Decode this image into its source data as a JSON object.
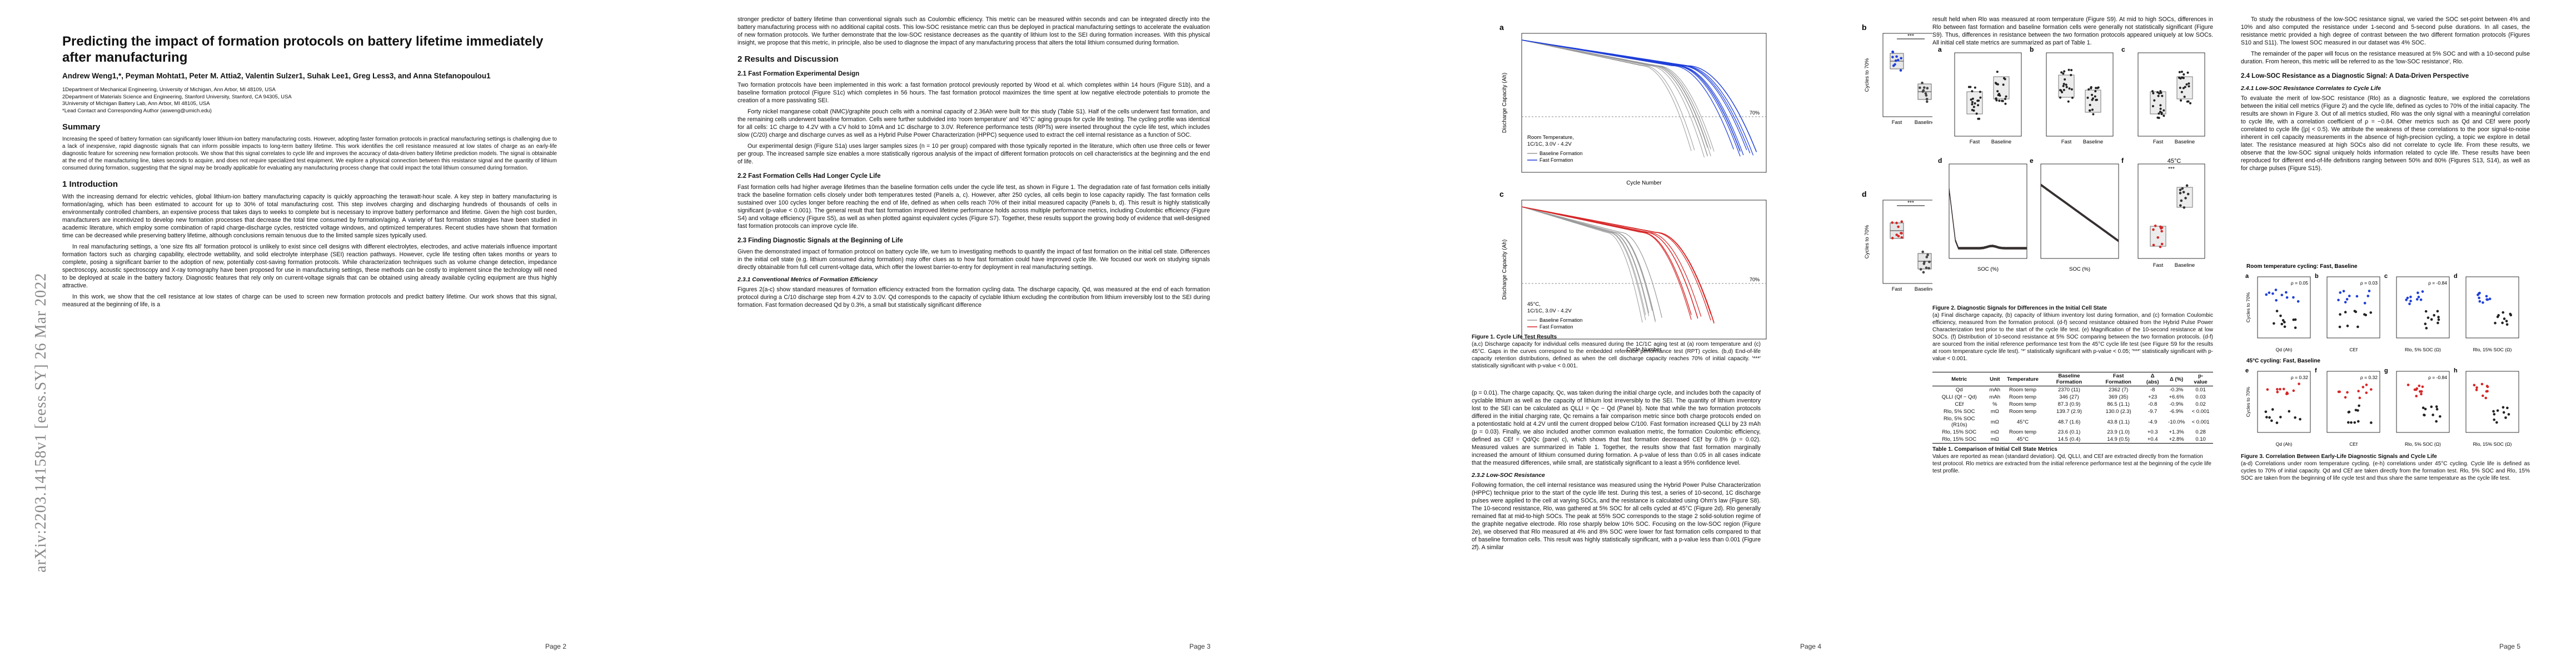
{
  "arxiv_id": "arXiv:2203.14158v1  [eess.SY]  26 Mar 2022",
  "page_numbers": [
    "Page 2",
    "Page 3",
    "Page 4",
    "Page 5"
  ],
  "paper": {
    "title": "Predicting the impact of formation protocols on battery lifetime immediately after manufacturing",
    "authors": "Andrew Weng1,*, Peyman Mohtat1, Peter M. Attia2, Valentin Sulzer1, Suhak Lee1, Greg Less3, and Anna Stefanopoulou1",
    "affiliations": [
      "1Department of Mechanical Engineering, University of Michigan, Ann Arbor, MI 48109, USA",
      "2Department of Materials Science and Engineering, Stanford University, Stanford, CA 94305, USA",
      "3University of Michigan Battery Lab, Ann Arbor, MI 48105, USA",
      "*Lead Contact and Corresponding Author (asweng@umich.edu)"
    ],
    "summary_heading": "Summary",
    "summary": "Increasing the speed of battery formation can significantly lower lithium-ion battery manufacturing costs. However, adopting faster formation protocols in practical manufacturing settings is challenging due to a lack of inexpensive, rapid diagnostic signals that can inform possible impacts to long-term battery lifetime. This work identifies the cell resistance measured at low states of charge as an early-life diagnostic feature for screening new formation protocols. We show that this signal correlates to cycle life and improves the accuracy of data-driven battery lifetime prediction models. The signal is obtainable at the end of the manufacturing line, takes seconds to acquire, and does not require specialized test equipment. We explore a physical connection between this resistance signal and the quantity of lithium consumed during formation, suggesting that the signal may be broadly applicable for evaluating any manufacturing process change that could impact the total lithium consumed during formation.",
    "intro_heading": "1  Introduction",
    "intro_p1": "With the increasing demand for electric vehicles, global lithium-ion battery manufacturing capacity is quickly approaching the terawatt-hour scale. A key step in battery manufacturing is formation/aging, which has been estimated to account for up to 30% of total manufacturing cost. This step involves charging and discharging hundreds of thousands of cells in environmentally controlled chambers, an expensive process that takes days to weeks to complete but is necessary to improve battery performance and lifetime. Given the high cost burden, manufacturers are incentivized to develop new formation processes that decrease the total time consumed by formation/aging. A variety of fast formation strategies have been studied in academic literature, which employ some combination of rapid charge-discharge cycles, restricted voltage windows, and optimized temperatures. Recent studies have shown that formation time can be decreased while preserving battery lifetime, although conclusions remain tenuous due to the limited sample sizes typically used.",
    "intro_p2": "In real manufacturing settings, a 'one size fits all' formation protocol is unlikely to exist since cell designs with different electrolytes, electrodes, and active materials influence important formation factors such as charging capability, electrode wettability, and solid electrolyte interphase (SEI) reaction pathways. However, cycle life testing often takes months or years to complete, posing a significant barrier to the adoption of new, potentially cost-saving formation protocols. While characterization techniques such as volume change detection, impedance spectroscopy, acoustic spectroscopy and X-ray tomography have been proposed for use in manufacturing settings, these methods can be costly to implement since the technology will need to be deployed at scale in the battery factory. Diagnostic features that rely only on current-voltage signals that can be obtained using already available cycling equipment are thus highly attractive.",
    "intro_p3": "In this work, we show that the cell resistance at low states of charge can be used to screen new formation protocols and predict battery lifetime. Our work shows that this signal, measured at the beginning of life, is a"
  },
  "page3": {
    "text_p1": "stronger predictor of battery lifetime than conventional signals such as Coulombic efficiency. This metric can be measured within seconds and can be integrated directly into the battery manufacturing process with no additional capital costs. This low-SOC resistance metric can thus be deployed in practical manufacturing settings to accelerate the evaluation of new formation protocols. We further demonstrate that the low-SOC resistance decreases as the quantity of lithium lost to the SEI during formation increases. With this physical insight, we propose that this metric, in principle, also be used to diagnose the impact of any manufacturing process that alters the total lithium consumed during formation.",
    "h_results": "2  Results and Discussion",
    "h_21": "2.1  Fast Formation Experimental Design",
    "p_21a": "Two formation protocols have been implemented in this work: a fast formation protocol previously reported by Wood et al. which completes within 14 hours (Figure S1b), and a baseline formation protocol (Figure S1c) which completes in 56 hours. The fast formation protocol maximizes the time spent at low negative electrode potentials to promote the creation of a more passivating SEI.",
    "p_21b": "Forty nickel manganese cobalt (NMC)/graphite pouch cells with a nominal capacity of 2.36Ah were built for this study (Table S1). Half of the cells underwent fast formation, and the remaining cells underwent baseline formation. Cells were further subdivided into 'room temperature' and '45°C' aging groups for cycle life testing. The cycling profile was identical for all cells: 1C charge to 4.2V with a CV hold to 10mA and 1C discharge to 3.0V. Reference performance tests (RPTs) were inserted throughout the cycle life test, which includes slow (C/20) charge and discharge curves as well as a Hybrid Pulse Power Characterization (HPPC) sequence used to extract the cell internal resistance as a function of SOC.",
    "p_21c": "Our experimental design (Figure S1a) uses larger samples sizes (n = 10 per group) compared with those typically reported in the literature, which often use three cells or fewer per group. The increased sample size enables a more statistically rigorous analysis of the impact of different formation protocols on cell characteristics at the beginning and the end of life.",
    "h_22": "2.2  Fast Formation Cells Had Longer Cycle Life",
    "p_22": "Fast formation cells had higher average lifetimes than the baseline formation cells under the cycle life test, as shown in Figure 1. The degradation rate of fast formation cells initially track the baseline formation cells closely under both temperatures tested (Panels a, c). However, after 250 cycles, all cells begin to lose capacity rapidly. The fast formation cells sustained over 100 cycles longer before reaching the end of life, defined as when cells reach 70% of their initial measured capacity (Panels b, d). This result is highly statistically significant (p-value < 0.001). The general result that fast formation improved lifetime performance holds across multiple performance metrics, including Coulombic efficiency (Figure S4) and voltage efficiency (Figure S5), as well as when plotted against equivalent cycles (Figure S7). Together, these results support the growing body of evidence that well-designed fast formation protocols can improve cycle life.",
    "h_23": "2.3  Finding Diagnostic Signals at the Beginning of Life",
    "p_23": "Given the demonstrated impact of formation protocol on battery cycle life, we turn to investigating methods to quantify the impact of fast formation on the initial cell state. Differences in the initial cell state (e.g. lithium consumed during formation) may offer clues as to how fast formation could have improved cycle life. We focused our work on studying signals directly obtainable from full cell current-voltage data, which offer the lowest barrier-to-entry for deployment in real manufacturing settings.",
    "h_231": "2.3.1  Conventional Metrics of Formation Efficiency",
    "p_231": "Figures 2(a-c) show standard measures of formation efficiency extracted from the formation cycling data. The discharge capacity, Qd, was measured at the end of each formation protocol during a C/10 discharge step from 4.2V to 3.0V. Qd corresponds to the capacity of cyclable lithium excluding the contribution from lithium irreversibly lost to the SEI during formation. Fast formation decreased Qd by 0.3%, a small but statistically significant difference"
  },
  "figure1": {
    "caption_title": "Figure 1. Cycle Life Test Results",
    "caption": "(a,c) Discharge capacity for individual cells measured during the 1C/1C aging test at (a) room temperature and (c) 45°C. Gaps in the curves correspond to the embedded reference performance test (RPT) cycles. (b,d) End-of-life capacity retention distributions, defined as when the cell discharge capacity reaches 70% of initial capacity. '***' statistically significant with p-value < 0.001.",
    "ylabel": "Discharge Capacity (Ah)",
    "xlabel": "Cycle Number",
    "box_ylabel": "Cycles to 70%",
    "line70": "70%",
    "legend_fast": "Fast Formation",
    "legend_base": "Baseline Formation",
    "sig": "***",
    "cond_a": [
      "Room Temperature,",
      "1C/1C, 3.0V - 4.2V"
    ],
    "cond_c": [
      "45°C,",
      "1C/1C, 3.0V - 4.2V"
    ],
    "box_cats": [
      "Fast",
      "Baseline"
    ]
  },
  "page4": {
    "text_p1": "result held when Rlo was measured at room temperature (Figure S9). At mid to high SOCs, differences in Rlo between fast formation and baseline formation cells were generally not statistically significant (Figure S9). Thus, differences in resistance between the two formation protocols appeared uniquely at low SOCs. All initial cell state metrics are summarized as part of Table 1.",
    "fig2_caption_title": "Figure 2. Diagnostic Signals for Differences in the Initial Cell State",
    "fig2_caption": "(a) Final discharge capacity, (b) capacity of lithium inventory lost during formation, and (c) formation Coulombic efficiency, measured from the formation protocol. (d-f) second resistance obtained from the Hybrid Pulse Power Characterization test prior to the start of the cycle life test. (e) Magnification of the 10-second resistance at low SOCs. (f) Distribution of 10-second resistance at 5% SOC comparing between the two formation protocols. (d-f) are sourced from the initial reference performance test from the 45°C cycle life test (see Figure S9 for the results at room temperature cycle life test). '*' statistically significant with p-value < 0.05; '***' statistically significant with p-value < 0.001.",
    "fig2_temp": "45°C",
    "fig2_legend": "Fast | Baseline",
    "fig2_xlabel": "SOC (%)",
    "table1_title": "Table 1. Comparison of Initial Cell State Metrics",
    "table1_caption": "Values are reported as mean (standard deviation). Qd, QLLI, and CEf are extracted directly from the formation test protocol. Rlo metrics are extracted from the initial reference performance test at the beginning of the cycle life test profile.",
    "table1_headers": [
      "Metric",
      "Unit",
      "Temperature",
      "Baseline Formation",
      "Fast Formation",
      "Δ (abs)",
      "Δ (%)",
      "p-value"
    ],
    "table1_rows": [
      [
        "Qd",
        "mAh",
        "Room temp",
        "2370 (11)",
        "2362 (7)",
        "-8",
        "-0.3%",
        "0.01"
      ],
      [
        "QLLI (Qf − Qd)",
        "mAh",
        "Room temp",
        "346 (27)",
        "369 (35)",
        "+23",
        "+6.6%",
        "0.03"
      ],
      [
        "CEf",
        "%",
        "Room temp",
        "87.3 (0.9)",
        "86.5 (1.1)",
        "-0.8",
        "-0.9%",
        "0.02"
      ],
      [
        "Rlo, 5% SOC",
        "mΩ",
        "Room temp",
        "139.7 (2.9)",
        "130.0 (2.3)",
        "-9.7",
        "-6.9%",
        "< 0.001"
      ],
      [
        "Rlo, 5% SOC (R10s)",
        "mΩ",
        "45°C",
        "48.7 (1.6)",
        "43.8 (1.1)",
        "-4.9",
        "-10.0%",
        "< 0.001"
      ],
      [
        "Rlo, 15% SOC",
        "mΩ",
        "Room temp",
        "23.6 (0.1)",
        "23.9 (1.0)",
        "+0.3",
        "+1.3%",
        "0.28"
      ],
      [
        "Rlo, 15% SOC",
        "mΩ",
        "45°C",
        "14.5 (0.4)",
        "14.9 (0.5)",
        "+0.4",
        "+2.8%",
        "0.10"
      ]
    ],
    "h_232": "2.3.2  Low-SOC Resistance",
    "p_232": "Following formation, the cell internal resistance was measured using the Hybrid Power Pulse Characterization (HPPC) technique prior to the start of the cycle life test. During this test, a series of 10-second, 1C discharge pulses were applied to the cell at varying SOCs, and the resistance is calculated using Ohm's law (Figure S8). The 10-second resistance, Rlo, was gathered at 5% SOC for all cells cycled at 45°C (Figure 2d). Rlo generally remained flat at mid-to-high SOCs. The peak at 55% SOC corresponds to the stage 2 solid-solution regime of the graphite negative electrode. Rlo rose sharply below 10% SOC. Focusing on the low-SOC region (Figure 2e), we observed that Rlo measured at 4% and 8% SOC were lower for fast formation cells compared to that of baseline formation cells. This result was highly statistically significant, with a p-value less than 0.001 (Figure 2f). A similar",
    "p_pvalue": "(p = 0.01). The charge capacity, Qc, was taken during the initial charge cycle, and includes both the capacity of cyclable lithium as well as the capacity of lithium lost irreversibly to the SEI. The quantity of lithium inventory lost to the SEI can be calculated as QLLI = Qc − Qd (Panel b). Note that while the two formation protocols differed in the initial charging rate, Qc remains a fair comparison metric since both charge protocols ended on a potentiostatic hold at 4.2V until the current dropped below C/100. Fast formation increased QLLI by 23 mAh (p = 0.03). Finally, we also included another common evaluation metric, the formation Coulombic efficiency, defined as CEf = Qd/Qc (panel c), which shows that fast formation decreased CEf by 0.8% (p = 0.02). Measured values are summarized in Table 1. Together, the results show that fast formation marginally increased the amount of lithium consumed during formation. A p-value of less than 0.05 in all cases indicate that the measured differences, while small, are statistically significant to a least a 95% confidence level."
  },
  "page5": {
    "text_p1": "To study the robustness of the low-SOC resistance signal, we varied the SOC set-point between 4% and 10% and also computed the resistance under 1-second and 5-second pulse durations. In all cases, the resistance metric provided a high degree of contrast between the two different formation protocols (Figures S10 and S11). The lowest SOC measured in our dataset was 4% SOC.",
    "text_p2": "The remainder of the paper will focus on the resistance measured at 5% SOC and with a 10-second pulse duration. From hereon, this metric will be referred to as the 'low-SOC resistance', Rlo.",
    "h_24": "2.4  Low-SOC Resistance as a Diagnostic Signal: A Data-Driven Perspective",
    "h_241": "2.4.1  Low-SOC Resistance Correlates to Cycle Life",
    "p_241": "To evaluate the merit of low-SOC resistance (Rlo) as a diagnostic feature, we explored the correlations between the initial cell metrics (Figure 2) and the cycle life, defined as cycles to 70% of the initial capacity. The results are shown in Figure 3. Out of all metrics studied, Rlo was the only signal with a meaningful correlation to cycle life, with a correlation coefficient of ρ = −0.84. Other metrics such as Qd and CEf were poorly correlated to cycle life (|ρ| < 0.5). We attribute the weakness of these correlations to the poor signal-to-noise inherent in cell capacity measurements in the absence of high-precision cycling, a topic we explore in detail later. The resistance measured at high SOCs also did not correlate to cycle life. From these results, we observe that the low-SOC signal uniquely holds information related to cycle life. These results have been reproduced for different end-of-life definitions ranging between 50% and 80% (Figures S13, S14), as well as for charge pulses (Figure S15).",
    "fig3_rt": "Room temperature cycling: Fast, Baseline",
    "fig3_45": "45°C cycling: Fast, Baseline",
    "fig3_ylabel": "Cycles to 70%",
    "fig3_rho_rt": [
      "ρ = 0.05",
      "ρ = 0.03",
      "ρ = -0.84"
    ],
    "fig3_rho_45": [
      "ρ = 0.32",
      "ρ = 0.32",
      "ρ = -0.84"
    ],
    "fig3_xlabels_rt": [
      "Qd (Ah)",
      "CEf",
      "Rlo, 5% SOC (Ω)",
      "Rlo, 15% SOC (Ω)"
    ],
    "fig3_caption_title": "Figure 3. Correlation Between Early-Life Diagnostic Signals and Cycle Life",
    "fig3_caption": "(a-d) Correlations under room temperature cycling. (e-h) correlations under 45°C cycling. Cycle life is defined as cycles to 70% of initial capacity. Qd and CEf are taken directly from the formation test. Rlo, 5% SOC and Rlo, 15% SOC are taken from the beginning of life cycle test and thus share the same temperature as the cycle life test."
  },
  "colors": {
    "fast": "#1f3fd8",
    "baseline": "#333333",
    "fast_45": "#d62728",
    "link": "#2a3aa8"
  }
}
